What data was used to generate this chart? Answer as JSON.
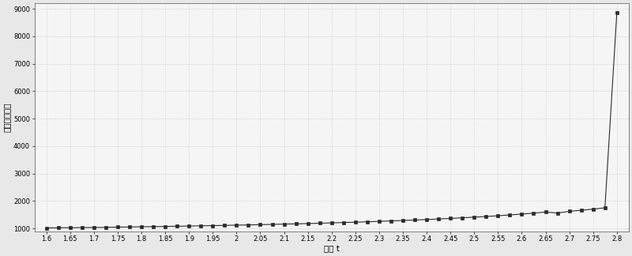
{
  "x_values": [
    1.6,
    1.625,
    1.65,
    1.675,
    1.7,
    1.725,
    1.75,
    1.775,
    1.8,
    1.825,
    1.85,
    1.875,
    1.9,
    1.925,
    1.95,
    1.975,
    2.0,
    2.025,
    2.05,
    2.075,
    2.1,
    2.125,
    2.15,
    2.175,
    2.2,
    2.225,
    2.25,
    2.275,
    2.3,
    2.325,
    2.35,
    2.375,
    2.4,
    2.425,
    2.45,
    2.475,
    2.5,
    2.525,
    2.55,
    2.575,
    2.6,
    2.625,
    2.65,
    2.675,
    2.7,
    2.725,
    2.75,
    2.775,
    2.8
  ],
  "y_values": [
    1015,
    1020,
    1025,
    1028,
    1032,
    1038,
    1045,
    1050,
    1058,
    1063,
    1070,
    1078,
    1085,
    1092,
    1100,
    1108,
    1118,
    1125,
    1135,
    1145,
    1155,
    1165,
    1175,
    1188,
    1200,
    1213,
    1225,
    1240,
    1255,
    1270,
    1288,
    1305,
    1322,
    1342,
    1362,
    1385,
    1408,
    1432,
    1460,
    1490,
    1520,
    1555,
    1595,
    1560,
    1620,
    1660,
    1700,
    1750,
    8850
  ],
  "y_ticks": [
    1000,
    2000,
    3000,
    4000,
    5000,
    6000,
    7000,
    8000,
    9000
  ],
  "xlim": [
    1.575,
    2.825
  ],
  "ylim": [
    900,
    9200
  ],
  "xlabel": "变量 t",
  "ylabel": "性能（体素）",
  "line_color": "#2a2a2a",
  "marker": "s",
  "markersize": 3.5,
  "linewidth": 0.8,
  "grid_color": "#b0b0b0",
  "bg_color": "#e8e8e8",
  "plot_bg_color": "#f5f5f5",
  "xlabel_fontsize": 7.5,
  "ylabel_fontsize": 7.5,
  "tick_fontsize": 6.0
}
